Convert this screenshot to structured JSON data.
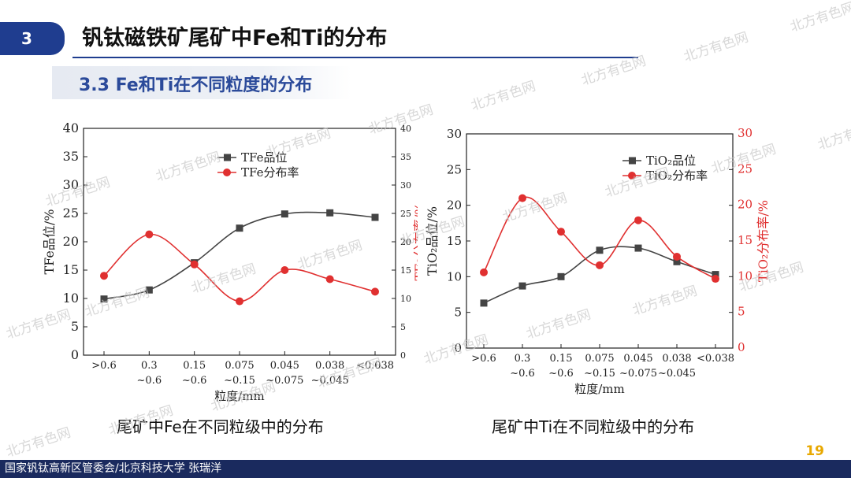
{
  "header": {
    "section_number": "3",
    "title": "钒钛磁铁矿尾矿中Fe和Ti的分布",
    "subtitle": "3.3 Fe和Ti在不同粒度的分布"
  },
  "captions": {
    "fe": "尾矿中Fe在不同粒级中的分布",
    "ti": "尾矿中Ti在不同粒级中的分布"
  },
  "footer": {
    "text": "国家钒钛高新区管委会/北京科技大学  张瑞洋",
    "page_number": "19"
  },
  "watermark_text": "北方有色网",
  "colors": {
    "accent": "#1f3d8f",
    "series_black": "#444444",
    "series_red": "#e03030",
    "page_number": "#e8a800"
  },
  "chart_data": [
    {
      "type": "line",
      "categories": [
        ">0.6",
        "0.3\n~0.6",
        "0.15\n~0.6",
        "0.075\n~0.15",
        "0.045\n~0.075",
        "0.038\n~0.045",
        "<0.038"
      ],
      "xlabel": "粒度/mm",
      "ylabel": "TFe品位/%",
      "ylabel_right": "TFe分布率/%",
      "ylim": [
        0,
        40
      ],
      "yticks": [
        0,
        5,
        10,
        15,
        20,
        25,
        30,
        35,
        40
      ],
      "ylim_right": [
        0,
        40
      ],
      "yticks_right": [
        0,
        5,
        10,
        15,
        20,
        25,
        30,
        35,
        40
      ],
      "legend_position": "top-center",
      "grid": false,
      "series": [
        {
          "name": "TFe品位",
          "axis": "left",
          "marker": "square",
          "color": "#444444",
          "values": [
            9.9,
            11.5,
            16.3,
            22.4,
            24.9,
            25.1,
            24.3
          ]
        },
        {
          "name": "TFe分布率",
          "axis": "right",
          "marker": "circle",
          "color": "#e03030",
          "values": [
            14.0,
            21.3,
            16.0,
            9.5,
            15.0,
            13.4,
            11.2
          ]
        }
      ]
    },
    {
      "type": "line",
      "categories": [
        ">0.6",
        "0.3\n~0.6",
        "0.15\n~0.6",
        "0.075\n~0.15",
        "0.045\n~0.075",
        "0.038\n~0.045",
        "<0.038"
      ],
      "xlabel": "粒度/mm",
      "ylabel": "TiO₂品位/%",
      "ylabel_right": "TiO₂分布率/%",
      "ylim": [
        0,
        30
      ],
      "yticks": [
        0,
        5,
        10,
        15,
        20,
        25,
        30
      ],
      "ylim_right": [
        0,
        30
      ],
      "yticks_right": [
        0,
        5,
        10,
        15,
        20,
        25,
        30
      ],
      "legend_position": "top-right",
      "grid": false,
      "series": [
        {
          "name": "TiO₂品位",
          "axis": "left",
          "marker": "square",
          "color": "#444444",
          "values": [
            6.3,
            8.7,
            10.0,
            13.7,
            14.0,
            12.1,
            10.3
          ]
        },
        {
          "name": "TiO₂分布率",
          "axis": "right",
          "marker": "circle",
          "color": "#e03030",
          "values": [
            10.6,
            21.0,
            16.3,
            11.6,
            17.9,
            12.8,
            9.7
          ]
        }
      ]
    }
  ]
}
